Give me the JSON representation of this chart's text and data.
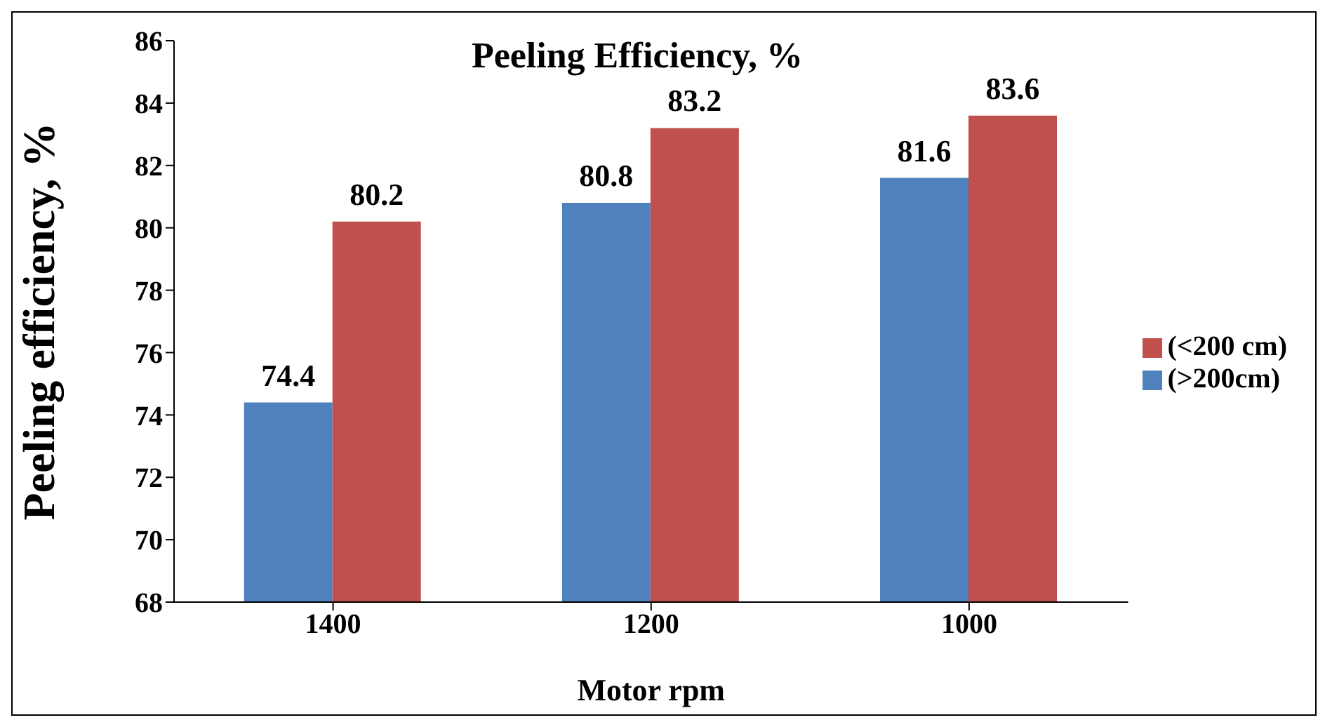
{
  "chart_data": {
    "type": "bar",
    "title": "Peeling Efficiency, %",
    "xlabel": "Motor rpm",
    "ylabel": "Peeling efficiency, %",
    "categories": [
      "1400",
      "1200",
      "1000"
    ],
    "series": [
      {
        "name": "(>200cm)",
        "color": "#4f81bd",
        "values": [
          74.4,
          80.8,
          81.6
        ]
      },
      {
        "name": "(<200 cm)",
        "color": "#c0504d",
        "values": [
          80.2,
          83.2,
          83.6
        ]
      }
    ],
    "ylim": [
      68,
      86
    ],
    "yticks": [
      68,
      70,
      72,
      74,
      76,
      78,
      80,
      82,
      84,
      86
    ],
    "data_labels": true,
    "legend": "right",
    "grid": false
  }
}
